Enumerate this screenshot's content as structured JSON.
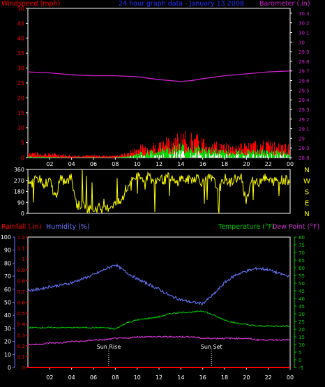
{
  "header": {
    "windspeed_label": "Windspeed (mph)",
    "title": "24 hour graph data - January 13 2008",
    "barometer_label": "Barometer (.in)"
  },
  "colors": {
    "background": "#000000",
    "frame": "#ffffff",
    "grid": "#222222",
    "wind_gust": "#ff0000",
    "wind_avg": "#00dd00",
    "wind_min": "#ffffff",
    "barometer": "#cc22cc",
    "direction": "#ffff00",
    "rainfall": "#ff0000",
    "humidity": "#6677ff",
    "temperature": "#00cc00",
    "dewpoint": "#cc33cc",
    "sun_marker": "#ffffff"
  },
  "bottom_header": {
    "rainfall_label": "Rainfall (.in)",
    "humidity_label": "Humidity (%)",
    "temperature_label": "Temperature (°F)",
    "dewpoint_label": "Dew Point (°F)"
  },
  "annotations": {
    "sunrise": "Sun Rise",
    "sunset": "Sun Set"
  },
  "chart_data": [
    {
      "type": "area",
      "panel": "wind_barometer",
      "x_ticks": [
        "02",
        "04",
        "06",
        "08",
        "10",
        "12",
        "14",
        "16",
        "18",
        "20",
        "22",
        "00"
      ],
      "left_axis": {
        "label": "Windspeed (mph)",
        "ticks": [
          0,
          5,
          10,
          15,
          20,
          25,
          30,
          35,
          40,
          45,
          50
        ],
        "ylim": [
          0,
          50
        ]
      },
      "right_axis": {
        "label": "Barometer (.in)",
        "ticks": [
          "28.8",
          "28.9",
          "29",
          "29.1",
          "29.2",
          "29.3",
          "29.4",
          "29.5",
          "29.6",
          "29.7",
          "29.8",
          "29.9",
          "30",
          "30.1",
          "30.2",
          "30.3"
        ],
        "ylim": [
          28.8,
          30.35
        ]
      },
      "series": [
        {
          "name": "Windspeed gust",
          "color": "#ff0000",
          "x": [
            0,
            1,
            2,
            3,
            4,
            5,
            6,
            7,
            8,
            9,
            10,
            11,
            12,
            13,
            14,
            15,
            16,
            17,
            18,
            19,
            20,
            21,
            22,
            23,
            24
          ],
          "values": [
            1.5,
            1,
            1,
            0.8,
            0.5,
            0.5,
            0.5,
            0.5,
            0.5,
            1,
            2.5,
            3,
            3.5,
            4.5,
            5.5,
            5,
            4.5,
            3.5,
            3,
            3,
            3,
            3.5,
            3.5,
            3,
            3
          ]
        },
        {
          "name": "Windspeed avg",
          "color": "#00dd00",
          "x": [
            0,
            1,
            2,
            3,
            4,
            5,
            6,
            7,
            8,
            9,
            10,
            11,
            12,
            13,
            14,
            15,
            16,
            17,
            18,
            19,
            20,
            21,
            22,
            23,
            24
          ],
          "values": [
            0.3,
            0.2,
            0.2,
            0.1,
            0.1,
            0.1,
            0.1,
            0.1,
            0.1,
            0.3,
            1.2,
            1.6,
            2,
            2.6,
            3.2,
            2.8,
            2.5,
            2,
            1.7,
            1.6,
            1.6,
            1.8,
            1.8,
            1.5,
            1.5
          ]
        },
        {
          "name": "Barometer",
          "color": "#cc22cc",
          "x": [
            0,
            2,
            4,
            6,
            8,
            10,
            12,
            13,
            14,
            15,
            16,
            18,
            20,
            22,
            24
          ],
          "values": [
            29.69,
            29.68,
            29.66,
            29.65,
            29.65,
            29.64,
            29.61,
            29.6,
            29.59,
            29.6,
            29.62,
            29.65,
            29.67,
            29.69,
            29.7
          ]
        }
      ]
    },
    {
      "type": "line",
      "panel": "wind_direction",
      "x_ticks": [
        "02",
        "04",
        "06",
        "08",
        "10",
        "12",
        "14",
        "16",
        "18",
        "20",
        "22",
        "00"
      ],
      "y_ticks": [
        0,
        90,
        180,
        270,
        360
      ],
      "ylim": [
        0,
        360
      ],
      "right_labels": [
        "N",
        "W",
        "S",
        "E",
        "N"
      ],
      "series": [
        {
          "name": "Wind direction",
          "color": "#ffff00",
          "x": [
            0,
            0.5,
            1,
            1.5,
            2,
            2.5,
            3,
            3.5,
            4,
            4.5,
            5,
            5.5,
            6,
            6.5,
            7,
            7.5,
            8,
            8.5,
            9,
            9.5,
            10,
            10.5,
            11,
            11.5,
            12,
            12.5,
            13,
            13.5,
            14,
            14.5,
            15,
            15.5,
            16,
            16.5,
            17,
            17.5,
            18,
            18.5,
            19,
            19.5,
            20,
            20.5,
            21,
            21.5,
            22,
            22.5,
            23,
            23.5,
            24
          ],
          "values": [
            280,
            260,
            290,
            240,
            270,
            130,
            280,
            250,
            300,
            60,
            80,
            40,
            30,
            50,
            20,
            60,
            80,
            90,
            180,
            290,
            300,
            280,
            310,
            250,
            290,
            270,
            310,
            240,
            290,
            270,
            280,
            300,
            250,
            290,
            270,
            200,
            290,
            250,
            290,
            280,
            100,
            290,
            240,
            300,
            270,
            260,
            280,
            270,
            275
          ]
        }
      ]
    },
    {
      "type": "line",
      "panel": "rain_humidity_temperature",
      "x_ticks": [
        "02",
        "04",
        "06",
        "08",
        "10",
        "12",
        "14",
        "16",
        "18",
        "20",
        "22",
        "00"
      ],
      "rain_axis": {
        "label": "Rainfall (.in)",
        "ticks": [
          "0",
          "0.1",
          "0.2",
          "0.3",
          "0.4",
          "0.5",
          "0.6",
          "0.7",
          "0.8",
          "0.9",
          "1",
          "1.1",
          "1.2"
        ],
        "ylim": [
          0,
          1.2
        ]
      },
      "humidity_axis": {
        "label": "Humidity (%)",
        "ticks": [
          0,
          10,
          20,
          30,
          40,
          50,
          60,
          70,
          80,
          90,
          100
        ],
        "ylim": [
          0,
          100
        ]
      },
      "temperature_axis": {
        "label": "Temperature (°F)",
        "ticks": [
          -5,
          0,
          5,
          10,
          15,
          20,
          25,
          30,
          35,
          40,
          45,
          50,
          55,
          60,
          65,
          70,
          75,
          80
        ],
        "ylim": [
          -5,
          80
        ]
      },
      "sunrise_hour": 7.4,
      "sunset_hour": 16.8,
      "series": [
        {
          "name": "Rainfall",
          "color": "#ff0000",
          "x": [
            0,
            24
          ],
          "values": [
            0,
            0
          ]
        },
        {
          "name": "Humidity",
          "color": "#6677ff",
          "x": [
            0,
            1,
            2,
            3,
            4,
            5,
            6,
            7,
            8,
            9,
            10,
            11,
            12,
            13,
            14,
            15,
            16,
            17,
            18,
            19,
            20,
            21,
            22,
            23,
            24
          ],
          "values": [
            59,
            60,
            62,
            63,
            65,
            68,
            71,
            75,
            79,
            73,
            68,
            64,
            60,
            55,
            52,
            50,
            49,
            56,
            65,
            71,
            74,
            76,
            75,
            72,
            70
          ]
        },
        {
          "name": "Temperature",
          "color": "#00cc00",
          "x": [
            0,
            1,
            2,
            3,
            4,
            5,
            6,
            7,
            8,
            9,
            10,
            11,
            12,
            13,
            14,
            15,
            16,
            17,
            18,
            19,
            20,
            21,
            22,
            23,
            24
          ],
          "values": [
            21,
            21,
            21,
            21,
            21,
            21,
            21,
            21,
            20,
            24,
            26,
            27,
            28,
            30,
            31,
            31,
            32,
            29,
            26,
            24,
            23,
            22,
            22,
            22,
            22
          ]
        },
        {
          "name": "Dew Point",
          "color": "#cc33cc",
          "x": [
            0,
            1,
            2,
            3,
            4,
            5,
            6,
            7,
            8,
            9,
            10,
            11,
            12,
            13,
            14,
            15,
            16,
            17,
            18,
            19,
            20,
            21,
            22,
            23,
            24
          ],
          "values": [
            10,
            10,
            11,
            11,
            12,
            12,
            13,
            13,
            14,
            14,
            15,
            15,
            15,
            15,
            15,
            15,
            14,
            14,
            14,
            14,
            14,
            13,
            13,
            13,
            13
          ]
        }
      ]
    }
  ]
}
